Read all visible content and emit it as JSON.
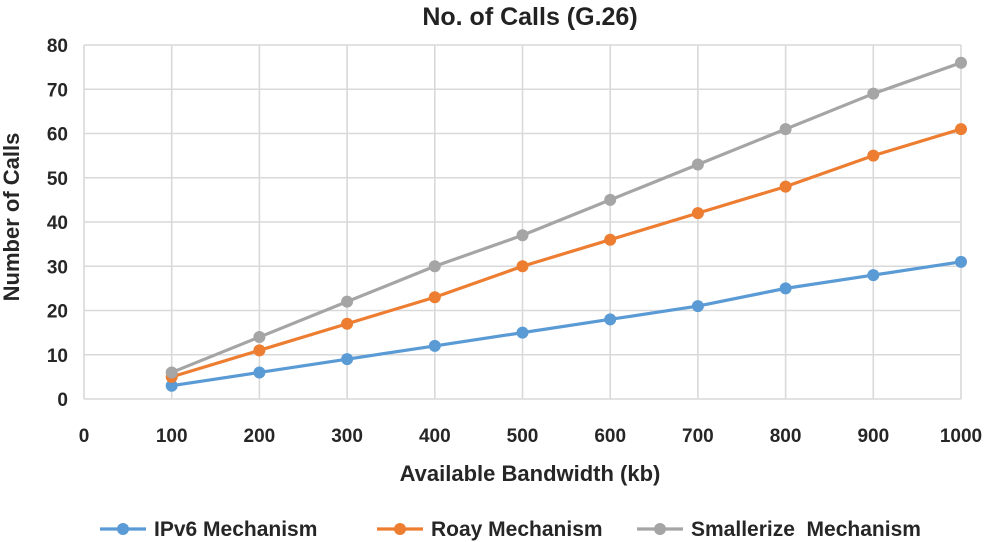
{
  "chart_data": {
    "type": "line",
    "title": "No. of Calls (G.26)",
    "xlabel": "Available Bandwidth (kb)",
    "ylabel": "Number of Calls",
    "xlim": [
      0,
      1000
    ],
    "ylim": [
      0,
      80
    ],
    "x_ticks": [
      0,
      100,
      200,
      300,
      400,
      500,
      600,
      700,
      800,
      900,
      1000
    ],
    "y_ticks": [
      0,
      10,
      20,
      30,
      40,
      50,
      60,
      70,
      80
    ],
    "grid": true,
    "legend_position": "bottom",
    "x": [
      100,
      200,
      300,
      400,
      500,
      600,
      700,
      800,
      900,
      1000
    ],
    "series": [
      {
        "name": "IPv6 Mechanism",
        "color": "#5b9bd5",
        "values": [
          3,
          6,
          9,
          12,
          15,
          18,
          21,
          25,
          28,
          31
        ]
      },
      {
        "name": "Roay Mechanism",
        "color": "#ed7d31",
        "values": [
          5,
          11,
          17,
          23,
          30,
          36,
          42,
          48,
          55,
          61
        ]
      },
      {
        "name": "Smallerize  Mechanism",
        "color": "#a5a5a5",
        "values": [
          6,
          14,
          22,
          30,
          37,
          45,
          53,
          61,
          69,
          76
        ]
      }
    ]
  }
}
